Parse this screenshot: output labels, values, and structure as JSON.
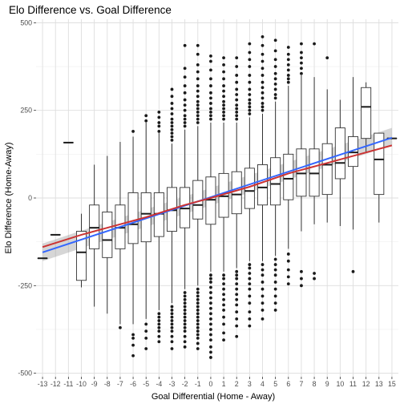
{
  "chart_data": {
    "type": "box",
    "title": "Elo Difference vs. Goal Difference",
    "xlabel": "Goal Differential (Home - Away)",
    "ylabel": "Elo Difference (Home-Away)",
    "ylim": [
      -510,
      510
    ],
    "y_ticks": [
      -500,
      -250,
      0,
      250,
      500
    ],
    "y_tick_labels": [
      "-500",
      "-250",
      "0",
      "250",
      "500"
    ],
    "categories": [
      "-13",
      "-12",
      "-11",
      "-10",
      "-9",
      "-8",
      "-7",
      "-6",
      "-5",
      "-4",
      "-3",
      "-2",
      "-1",
      "0",
      "1",
      "2",
      "3",
      "4",
      "5",
      "6",
      "7",
      "8",
      "9",
      "10",
      "11",
      "12",
      "13",
      "15"
    ],
    "boxes": [
      {
        "x": -13,
        "whisker_low": -172,
        "q1": -172,
        "median": -172,
        "q3": -172,
        "whisker_high": -172,
        "outliers": []
      },
      {
        "x": -12,
        "whisker_low": -105,
        "q1": -105,
        "median": -105,
        "q3": -105,
        "whisker_high": -105,
        "outliers": []
      },
      {
        "x": -11,
        "whisker_low": 158,
        "q1": 158,
        "median": 158,
        "q3": 158,
        "whisker_high": 158,
        "outliers": []
      },
      {
        "x": -10,
        "whisker_low": -255,
        "q1": -235,
        "median": -155,
        "q3": -95,
        "whisker_high": -45,
        "outliers": []
      },
      {
        "x": -9,
        "whisker_low": -310,
        "q1": -145,
        "median": -85,
        "q3": -20,
        "whisker_high": 95,
        "outliers": []
      },
      {
        "x": -8,
        "whisker_low": -330,
        "q1": -170,
        "median": -120,
        "q3": -40,
        "whisker_high": 120,
        "outliers": []
      },
      {
        "x": -7,
        "whisker_low": -360,
        "q1": -145,
        "median": -85,
        "q3": -20,
        "whisker_high": 160,
        "outliers": [
          -370
        ]
      },
      {
        "x": -6,
        "whisker_low": -360,
        "q1": -130,
        "median": -75,
        "q3": 15,
        "whisker_high": 175,
        "outliers": [
          -390,
          -400,
          -420,
          -450,
          190
        ]
      },
      {
        "x": -5,
        "whisker_low": -345,
        "q1": -125,
        "median": -45,
        "q3": 15,
        "whisker_high": 215,
        "outliers": [
          -360,
          -380,
          -400,
          -430,
          220,
          235
        ]
      },
      {
        "x": -4,
        "whisker_low": -320,
        "q1": -110,
        "median": -45,
        "q3": 15,
        "whisker_high": 185,
        "outliers": [
          -330,
          -340,
          -350,
          -360,
          -370,
          -380,
          -395,
          -410,
          190,
          205,
          215,
          230,
          245
        ]
      },
      {
        "x": -3,
        "whisker_low": -300,
        "q1": -95,
        "median": -35,
        "q3": 30,
        "whisker_high": 155,
        "outliers": [
          -310,
          -320,
          -330,
          -340,
          -350,
          -360,
          -370,
          -380,
          -395,
          -410,
          -430,
          165,
          175,
          185,
          195,
          205,
          215,
          225,
          240,
          255,
          270,
          290,
          310
        ]
      },
      {
        "x": -2,
        "whisker_low": -260,
        "q1": -85,
        "median": -30,
        "q3": 30,
        "whisker_high": 195,
        "outliers": [
          -270,
          -280,
          -290,
          -300,
          -310,
          -320,
          -330,
          -340,
          -350,
          -360,
          -370,
          -380,
          -395,
          -410,
          -425,
          205,
          215,
          225,
          235,
          250,
          265,
          280,
          300,
          320,
          345,
          370,
          435
        ]
      },
      {
        "x": -1,
        "whisker_low": -250,
        "q1": -60,
        "median": -20,
        "q3": 50,
        "whisker_high": 205,
        "outliers": [
          -260,
          -270,
          -280,
          -290,
          -300,
          -310,
          -320,
          -330,
          -340,
          -350,
          -360,
          -370,
          -380,
          -390,
          -400,
          -415,
          -430,
          215,
          225,
          235,
          245,
          255,
          265,
          275,
          290,
          305,
          320,
          340,
          360,
          380,
          410,
          435
        ]
      },
      {
        "x": 0,
        "whisker_low": -210,
        "q1": -75,
        "median": -5,
        "q3": 60,
        "whisker_high": 215,
        "outliers": [
          -220,
          -230,
          -240,
          -255,
          -270,
          -285,
          -300,
          -315,
          -330,
          -345,
          -360,
          -375,
          -390,
          -405,
          -425,
          -440,
          -455,
          225,
          235,
          245,
          255,
          270,
          285,
          300,
          320,
          340,
          365,
          390,
          405
        ]
      },
      {
        "x": 1,
        "whisker_low": -210,
        "q1": -55,
        "median": 5,
        "q3": 70,
        "whisker_high": 215,
        "outliers": [
          -220,
          -230,
          -245,
          -260,
          -275,
          -290,
          -305,
          -320,
          -340,
          -360,
          -385,
          -405,
          225,
          235,
          245,
          255,
          265,
          275,
          290,
          305,
          320,
          340,
          360,
          380,
          400
        ]
      },
      {
        "x": 2,
        "whisker_low": -200,
        "q1": -45,
        "median": 10,
        "q3": 75,
        "whisker_high": 215,
        "outliers": [
          -210,
          -220,
          -230,
          -245,
          -260,
          -275,
          -290,
          -305,
          -325,
          -345,
          -365,
          -395,
          225,
          235,
          245,
          255,
          265,
          280,
          295,
          310,
          330,
          350,
          375,
          400
        ]
      },
      {
        "x": 3,
        "whisker_low": -180,
        "q1": -30,
        "median": 20,
        "q3": 85,
        "whisker_high": 230,
        "outliers": [
          -190,
          -200,
          -215,
          -230,
          -245,
          -260,
          -280,
          -300,
          -325,
          -345,
          -365,
          240,
          250,
          260,
          270,
          280,
          295,
          310,
          330,
          350,
          375,
          395,
          415,
          440
        ]
      },
      {
        "x": 4,
        "whisker_low": -180,
        "q1": -20,
        "median": 30,
        "q3": 95,
        "whisker_high": 240,
        "outliers": [
          -190,
          -205,
          -220,
          -240,
          -260,
          -280,
          -300,
          -320,
          -345,
          250,
          260,
          270,
          285,
          300,
          315,
          330,
          350,
          370,
          390,
          410,
          435,
          460
        ]
      },
      {
        "x": 5,
        "whisker_low": -165,
        "q1": -20,
        "median": 40,
        "q3": 115,
        "whisker_high": 275,
        "outliers": [
          -175,
          -190,
          -205,
          -220,
          -240,
          -260,
          -280,
          -300,
          -320,
          285,
          295,
          310,
          325,
          340,
          355,
          375,
          395,
          420,
          450
        ]
      },
      {
        "x": 6,
        "whisker_low": -145,
        "q1": -5,
        "median": 55,
        "q3": 125,
        "whisker_high": 320,
        "outliers": [
          -160,
          -180,
          -205,
          -225,
          -245,
          330,
          340,
          350,
          365,
          380,
          395,
          410,
          430
        ]
      },
      {
        "x": 7,
        "whisker_low": -95,
        "q1": 5,
        "median": 70,
        "q3": 140,
        "whisker_high": 350,
        "outliers": [
          -210,
          -230,
          -250,
          355,
          370,
          385,
          400,
          415,
          440
        ]
      },
      {
        "x": 8,
        "whisker_low": -75,
        "q1": 5,
        "median": 70,
        "q3": 140,
        "whisker_high": 345,
        "outliers": [
          -215,
          -230,
          440
        ]
      },
      {
        "x": 9,
        "whisker_low": -70,
        "q1": 10,
        "median": 95,
        "q3": 155,
        "whisker_high": 310,
        "outliers": [
          400
        ]
      },
      {
        "x": 10,
        "whisker_low": -80,
        "q1": 55,
        "median": 100,
        "q3": 200,
        "whisker_high": 280,
        "outliers": []
      },
      {
        "x": 11,
        "whisker_low": -90,
        "q1": 90,
        "median": 130,
        "q3": 175,
        "whisker_high": 345,
        "outliers": [
          -210
        ]
      },
      {
        "x": 12,
        "whisker_low": 130,
        "q1": 170,
        "median": 260,
        "q3": 315,
        "whisker_high": 330,
        "outliers": []
      },
      {
        "x": 13,
        "whisker_low": -70,
        "q1": 10,
        "median": 110,
        "q3": 185,
        "whisker_high": 185,
        "outliers": []
      },
      {
        "x": 15,
        "whisker_low": 170,
        "q1": 170,
        "median": 170,
        "q3": 170,
        "whisker_high": 170,
        "outliers": []
      }
    ],
    "fit_lines": [
      {
        "method": "linear",
        "color": "#3366ff",
        "x": [
          -13,
          15
        ],
        "y": [
          -155,
          172
        ],
        "ci_lower": [
          -180,
          150
        ],
        "ci_upper": [
          -130,
          200
        ]
      },
      {
        "method": "smooth",
        "color": "#cc3333",
        "x": [
          -13,
          -10,
          -5,
          -2,
          0,
          3,
          6,
          9,
          12,
          15
        ],
        "y": [
          -140,
          -105,
          -55,
          -20,
          0,
          32,
          70,
          100,
          130,
          150
        ]
      }
    ],
    "grid": true,
    "legend": "none"
  }
}
